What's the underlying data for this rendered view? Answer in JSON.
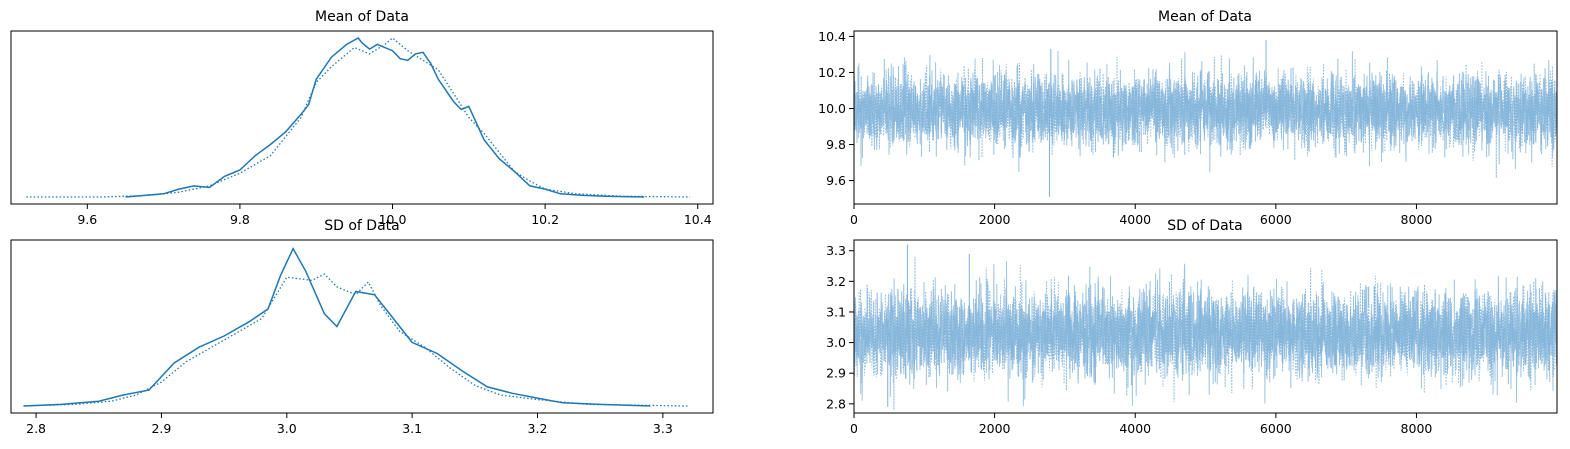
{
  "chart_data": [
    {
      "type": "line",
      "title": "Mean of Data",
      "xlim": [
        9.5,
        10.42
      ],
      "xticks": [
        "9.6",
        "9.8",
        "10.0",
        "10.2",
        "10.4"
      ],
      "xtick_values": [
        9.6,
        9.8,
        10.0,
        10.2,
        10.4
      ],
      "yticks": [],
      "series": [
        {
          "style": "solid",
          "x": [
            9.65,
            9.7,
            9.72,
            9.74,
            9.76,
            9.78,
            9.8,
            9.82,
            9.84,
            9.86,
            9.88,
            9.89,
            9.9,
            9.92,
            9.94,
            9.955,
            9.96,
            9.97,
            9.98,
            10.0,
            10.01,
            10.02,
            10.03,
            10.04,
            10.05,
            10.06,
            10.08,
            10.09,
            10.1,
            10.12,
            10.14,
            10.16,
            10.18,
            10.2,
            10.22,
            10.25,
            10.28,
            10.33
          ],
          "y": [
            0.0,
            0.02,
            0.05,
            0.07,
            0.06,
            0.13,
            0.17,
            0.26,
            0.33,
            0.41,
            0.52,
            0.58,
            0.74,
            0.88,
            0.96,
            1.0,
            0.97,
            0.93,
            0.96,
            0.92,
            0.87,
            0.86,
            0.9,
            0.91,
            0.84,
            0.74,
            0.6,
            0.55,
            0.57,
            0.36,
            0.24,
            0.16,
            0.07,
            0.05,
            0.02,
            0.01,
            0.005,
            0.0
          ]
        },
        {
          "style": "dotted",
          "x": [
            9.52,
            9.62,
            9.68,
            9.72,
            9.76,
            9.8,
            9.84,
            9.88,
            9.9,
            9.92,
            9.95,
            9.97,
            9.99,
            10.0,
            10.02,
            10.04,
            10.06,
            10.08,
            10.1,
            10.12,
            10.14,
            10.16,
            10.18,
            10.2,
            10.24,
            10.3,
            10.39
          ],
          "y": [
            0.0,
            0.0,
            0.01,
            0.03,
            0.07,
            0.15,
            0.26,
            0.5,
            0.72,
            0.82,
            0.94,
            0.9,
            0.96,
            1.0,
            0.92,
            0.86,
            0.8,
            0.65,
            0.5,
            0.4,
            0.28,
            0.16,
            0.1,
            0.05,
            0.02,
            0.005,
            0.0
          ]
        }
      ]
    },
    {
      "type": "line",
      "title": "Mean of Data",
      "xlim": [
        0,
        9999
      ],
      "ylim": [
        9.47,
        10.43
      ],
      "xticks": [
        "0",
        "2000",
        "4000",
        "6000",
        "8000"
      ],
      "xtick_values": [
        0,
        2000,
        4000,
        6000,
        8000
      ],
      "yticks": [
        "9.6",
        "9.8",
        "10.0",
        "10.2",
        "10.4"
      ],
      "ytick_values": [
        9.6,
        9.8,
        10.0,
        10.2,
        10.4
      ],
      "center": 9.99,
      "sd": 0.1,
      "n_draws": 10000,
      "extremes": [
        {
          "x": 2780,
          "y": 9.51
        },
        {
          "x": 5860,
          "y": 10.38
        },
        {
          "x": 2800,
          "y": 10.33
        }
      ]
    },
    {
      "type": "line",
      "title": "SD of Data",
      "xlim": [
        2.78,
        3.34
      ],
      "xticks": [
        "2.8",
        "2.9",
        "3.0",
        "3.1",
        "3.2",
        "3.3"
      ],
      "xtick_values": [
        2.8,
        2.9,
        3.0,
        3.1,
        3.2,
        3.3
      ],
      "yticks": [],
      "series": [
        {
          "style": "solid",
          "x": [
            2.79,
            2.82,
            2.85,
            2.87,
            2.89,
            2.91,
            2.93,
            2.95,
            2.97,
            2.985,
            2.995,
            3.005,
            3.015,
            3.03,
            3.04,
            3.055,
            3.07,
            3.08,
            3.1,
            3.12,
            3.14,
            3.16,
            3.18,
            3.2,
            3.22,
            3.25,
            3.29
          ],
          "y": [
            0.0,
            0.01,
            0.03,
            0.07,
            0.1,
            0.27,
            0.37,
            0.44,
            0.53,
            0.61,
            0.82,
            0.99,
            0.85,
            0.58,
            0.5,
            0.72,
            0.7,
            0.6,
            0.4,
            0.33,
            0.22,
            0.12,
            0.08,
            0.05,
            0.02,
            0.01,
            0.0
          ]
        },
        {
          "style": "dotted",
          "x": [
            2.79,
            2.83,
            2.86,
            2.88,
            2.9,
            2.92,
            2.94,
            2.96,
            2.98,
            3.0,
            3.02,
            3.03,
            3.04,
            3.055,
            3.065,
            3.075,
            3.09,
            3.11,
            3.13,
            3.15,
            3.17,
            3.2,
            3.24,
            3.32
          ],
          "y": [
            0.0,
            0.01,
            0.03,
            0.07,
            0.15,
            0.28,
            0.37,
            0.46,
            0.55,
            0.81,
            0.79,
            0.83,
            0.75,
            0.7,
            0.78,
            0.63,
            0.47,
            0.37,
            0.24,
            0.13,
            0.07,
            0.04,
            0.01,
            0.0
          ]
        }
      ]
    },
    {
      "type": "line",
      "title": "SD of Data",
      "xlim": [
        0,
        9999
      ],
      "ylim": [
        2.77,
        3.335
      ],
      "xticks": [
        "0",
        "2000",
        "4000",
        "6000",
        "8000"
      ],
      "xtick_values": [
        0,
        2000,
        4000,
        6000,
        8000
      ],
      "yticks": [
        "2.8",
        "2.9",
        "3.0",
        "3.1",
        "3.2",
        "3.3"
      ],
      "ytick_values": [
        2.8,
        2.9,
        3.0,
        3.1,
        3.2,
        3.3
      ],
      "center": 3.03,
      "sd": 0.068,
      "n_draws": 10000,
      "extremes": [
        {
          "x": 480,
          "y": 2.79
        },
        {
          "x": 760,
          "y": 3.32
        },
        {
          "x": 1640,
          "y": 3.29
        }
      ]
    }
  ],
  "colors": {
    "line": "#1f77b4",
    "trace": "#7fb1d8"
  }
}
